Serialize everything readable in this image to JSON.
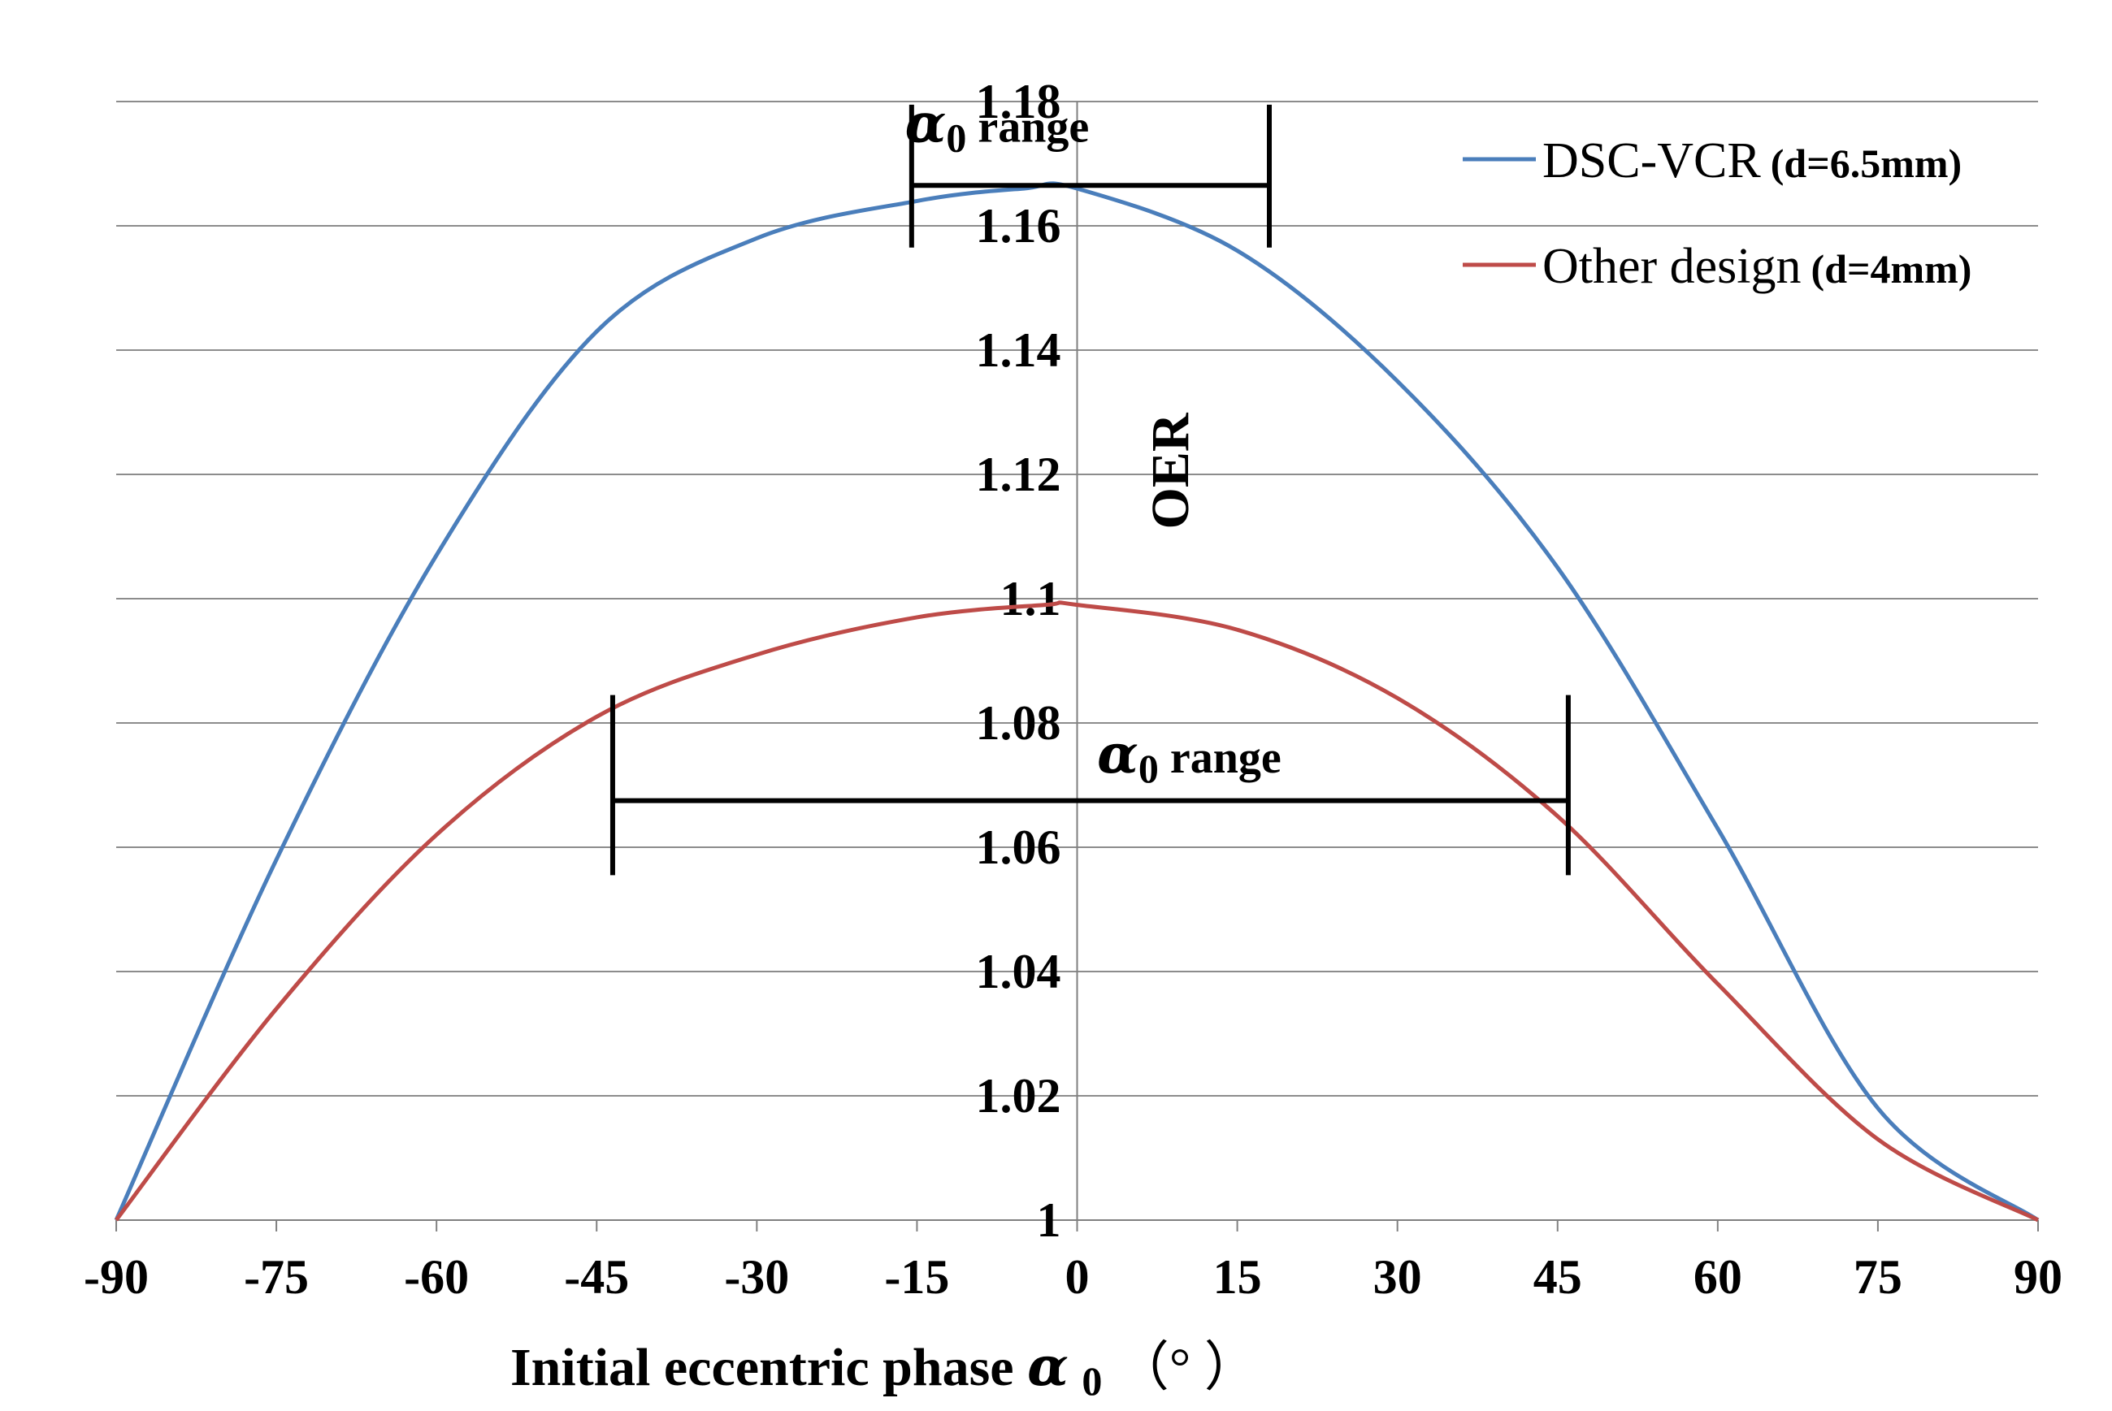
{
  "chart_data": {
    "type": "line",
    "title": "",
    "ylabel": "OER",
    "xlabel": {
      "prefix": "Initial eccentric  phase ",
      "symbol": "α",
      "subscript": "0",
      "suffix": "（°   ）"
    },
    "xlim": [
      -90,
      90
    ],
    "ylim": [
      1,
      1.18
    ],
    "x_ticks": [
      {
        "value": -90,
        "label": "-90"
      },
      {
        "value": -75,
        "label": "-75"
      },
      {
        "value": -60,
        "label": "-60"
      },
      {
        "value": -45,
        "label": "-45"
      },
      {
        "value": -30,
        "label": "-30"
      },
      {
        "value": -15,
        "label": "-15"
      },
      {
        "value": 0,
        "label": "0"
      },
      {
        "value": 15,
        "label": "15"
      },
      {
        "value": 30,
        "label": "30"
      },
      {
        "value": 45,
        "label": "45"
      },
      {
        "value": 60,
        "label": "60"
      },
      {
        "value": 75,
        "label": "75"
      },
      {
        "value": 90,
        "label": "90"
      }
    ],
    "y_ticks": [
      {
        "value": 1,
        "label": "1"
      },
      {
        "value": 1.02,
        "label": "1.02"
      },
      {
        "value": 1.04,
        "label": "1.04"
      },
      {
        "value": 1.06,
        "label": "1.06"
      },
      {
        "value": 1.08,
        "label": "1.08"
      },
      {
        "value": 1.1,
        "label": "1.1"
      },
      {
        "value": 1.12,
        "label": "1.12"
      },
      {
        "value": 1.14,
        "label": "1.14"
      },
      {
        "value": 1.16,
        "label": "1.16"
      },
      {
        "value": 1.18,
        "label": "1.18"
      }
    ],
    "grid": "horizontal",
    "legend_position": "top-right",
    "series": [
      {
        "name": "DSC-VCR",
        "note": "(d=6.5mm)",
        "color": "#4a7ebb",
        "x": [
          -90,
          -75,
          -60,
          -45,
          -30,
          -15,
          -5,
          0,
          15,
          30,
          45,
          60,
          75,
          90
        ],
        "y": [
          1.0,
          1.058,
          1.107,
          1.143,
          1.158,
          1.164,
          1.166,
          1.166,
          1.156,
          1.135,
          1.105,
          1.063,
          1.018,
          1.0
        ]
      },
      {
        "name": "Other design",
        "note": "(d=4mm)",
        "color": "#be4b48",
        "x": [
          -90,
          -75,
          -60,
          -45,
          -30,
          -15,
          -3,
          0,
          15,
          30,
          45,
          60,
          75,
          90
        ],
        "y": [
          1.0,
          1.034,
          1.062,
          1.081,
          1.091,
          1.097,
          1.099,
          1.099,
          1.095,
          1.084,
          1.065,
          1.038,
          1.013,
          1.0
        ]
      }
    ],
    "annotations": [
      {
        "symbol": "α",
        "subscript": "0",
        "text": "range",
        "series": "DSC-VCR",
        "x_range": [
          -15.5,
          18
        ],
        "y_level": 1.1665,
        "cap_y_range": [
          1.1565,
          1.1795
        ],
        "label_x": -7.5,
        "label_y": 1.1735
      },
      {
        "symbol": "α",
        "subscript": "0",
        "text": "range",
        "series": "Other design",
        "x_range": [
          -43.5,
          46
        ],
        "y_level": 1.0675,
        "cap_y_range": [
          1.0555,
          1.0845
        ],
        "label_x": 10.5,
        "label_y": 1.072
      }
    ]
  }
}
